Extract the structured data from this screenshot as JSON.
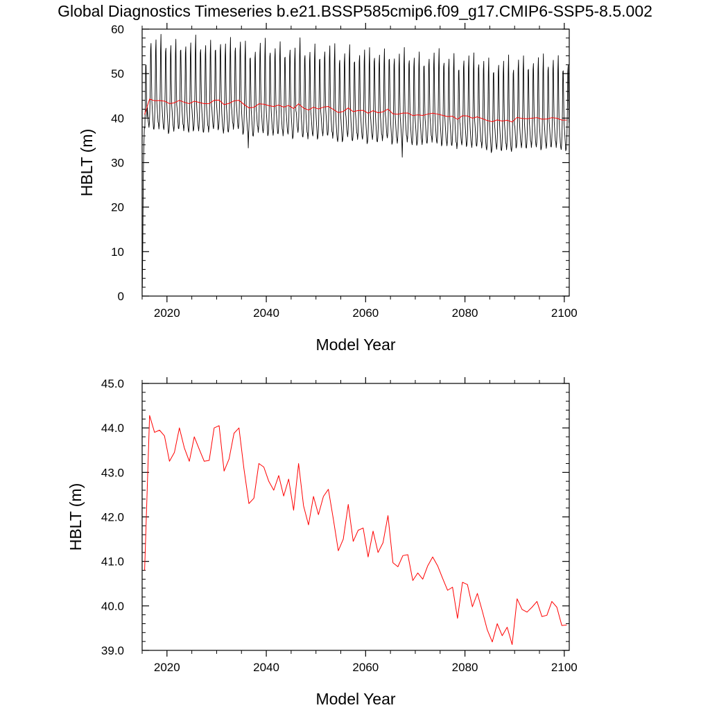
{
  "title": "Global Diagnostics Timeseries b.e21.BSSP585cmip6.f09_g17.CMIP6-SSP5-8.5.002",
  "colors": {
    "monthly": "#000000",
    "annual": "#ff0000"
  },
  "chart_data": [
    {
      "type": "line",
      "xlabel": "Model Year",
      "ylabel": "HBLT (m)",
      "xlim": [
        2015,
        2101
      ],
      "ylim": [
        0,
        60
      ],
      "xticks": [
        2020,
        2040,
        2060,
        2080,
        2100
      ],
      "yticks": [
        0,
        10,
        20,
        30,
        40,
        50,
        60
      ],
      "ytick_labels": [
        "0",
        "10",
        "20",
        "30",
        "40",
        "50",
        "60"
      ],
      "series": [
        {
          "style": "monthly",
          "color": "#000000",
          "x_start": 2015,
          "months_per_year": 12,
          "spinup": [
            2,
            12,
            24,
            31,
            35,
            38
          ],
          "monthly_cycle": [
            40.0,
            38.5,
            37.0,
            36.0,
            35.5,
            36.5,
            39.0,
            44.0,
            53.0,
            55.0,
            47.0,
            41.5
          ],
          "annual_reference": "annual",
          "outliers": [
            {
              "year": 2067,
              "month": 4,
              "value": 31.2
            },
            {
              "year": 2036,
              "month": 4,
              "value": 33.3
            }
          ]
        },
        {
          "style": "annual",
          "color": "#ff0000",
          "ref": "annual"
        }
      ]
    },
    {
      "type": "line",
      "xlabel": "Model Year",
      "ylabel": "HBLT (m)",
      "xlim": [
        2015,
        2101
      ],
      "ylim": [
        39,
        45
      ],
      "xticks": [
        2020,
        2040,
        2060,
        2080,
        2100
      ],
      "yticks": [
        39,
        40,
        41,
        42,
        43,
        44,
        45
      ],
      "ytick_labels": [
        "39.0",
        "40.0",
        "41.0",
        "42.0",
        "43.0",
        "44.0",
        "45.0"
      ],
      "series": [
        {
          "style": "annual",
          "color": "#ff0000",
          "ref": "annual"
        }
      ]
    }
  ],
  "annual": {
    "x": [
      2015.5,
      2016.5,
      2017.5,
      2018.5,
      2019.5,
      2020.5,
      2021.5,
      2022.5,
      2023.5,
      2024.5,
      2025.5,
      2026.5,
      2027.5,
      2028.5,
      2029.5,
      2030.5,
      2031.5,
      2032.5,
      2033.5,
      2034.5,
      2035.5,
      2036.5,
      2037.5,
      2038.5,
      2039.5,
      2040.5,
      2041.5,
      2042.5,
      2043.5,
      2044.5,
      2045.5,
      2046.5,
      2047.5,
      2048.5,
      2049.5,
      2050.5,
      2051.5,
      2052.5,
      2053.5,
      2054.5,
      2055.5,
      2056.5,
      2057.5,
      2058.5,
      2059.5,
      2060.5,
      2061.5,
      2062.5,
      2063.5,
      2064.5,
      2065.5,
      2066.5,
      2067.5,
      2068.5,
      2069.5,
      2070.5,
      2071.5,
      2072.5,
      2073.5,
      2074.5,
      2075.5,
      2076.5,
      2077.5,
      2078.5,
      2079.5,
      2080.5,
      2081.5,
      2082.5,
      2083.5,
      2084.5,
      2085.5,
      2086.5,
      2087.5,
      2088.5,
      2089.5,
      2090.5,
      2091.5,
      2092.5,
      2093.5,
      2094.5,
      2095.5,
      2096.5,
      2097.5,
      2098.5,
      2099.5,
      2100.5
    ],
    "y": [
      40.8,
      44.28,
      43.9,
      43.95,
      43.82,
      43.25,
      43.45,
      44.0,
      43.55,
      43.25,
      43.8,
      43.52,
      43.25,
      43.27,
      44.0,
      44.05,
      43.03,
      43.3,
      43.88,
      44.0,
      43.08,
      42.3,
      42.42,
      43.2,
      43.12,
      42.8,
      42.6,
      42.93,
      42.47,
      42.85,
      42.15,
      43.2,
      42.25,
      41.82,
      42.46,
      42.05,
      42.46,
      42.62,
      41.95,
      41.24,
      41.5,
      42.28,
      41.45,
      41.7,
      41.75,
      41.1,
      41.68,
      41.2,
      41.42,
      42.03,
      40.97,
      40.88,
      41.13,
      41.15,
      40.57,
      40.74,
      40.6,
      40.9,
      41.1,
      40.9,
      40.62,
      40.35,
      40.42,
      39.72,
      40.53,
      40.48,
      39.98,
      40.28,
      39.88,
      39.46,
      39.19,
      39.6,
      39.33,
      39.52,
      39.13,
      40.16,
      39.92,
      39.86,
      39.97,
      40.1,
      39.76,
      39.79,
      40.1,
      39.97,
      39.56,
      39.57
    ]
  }
}
